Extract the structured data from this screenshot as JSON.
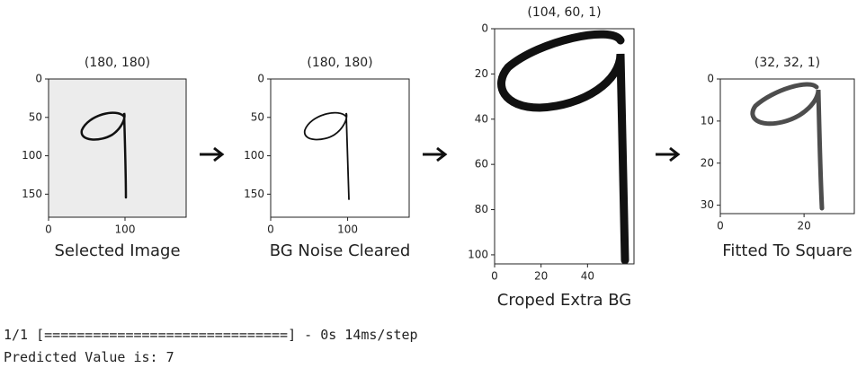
{
  "panels": [
    {
      "title": "(180, 180)",
      "caption": "Selected Image",
      "xlim": [
        0,
        180
      ],
      "ylim": [
        0,
        180
      ],
      "xticks": [
        0,
        100
      ],
      "yticks": [
        0,
        50,
        100,
        150
      ]
    },
    {
      "title": "(180, 180)",
      "caption": "BG Noise Cleared",
      "xlim": [
        0,
        180
      ],
      "ylim": [
        0,
        180
      ],
      "xticks": [
        0,
        100
      ],
      "yticks": [
        0,
        50,
        100,
        150
      ]
    },
    {
      "title": "(104, 60, 1)",
      "caption": "Croped Extra BG",
      "xlim": [
        0,
        60
      ],
      "ylim": [
        0,
        104
      ],
      "xticks": [
        0,
        20,
        40
      ],
      "yticks": [
        0,
        20,
        40,
        60,
        80,
        100
      ]
    },
    {
      "title": "(32, 32, 1)",
      "caption": "Fitted To Square",
      "xlim": [
        0,
        32
      ],
      "ylim": [
        0,
        32
      ],
      "xticks": [
        0,
        20
      ],
      "yticks": [
        0,
        10,
        20,
        30
      ]
    }
  ],
  "output": {
    "progress": "1/1 [==============================] - 0s 14ms/step",
    "prediction": "Predicted Value is: 7"
  }
}
